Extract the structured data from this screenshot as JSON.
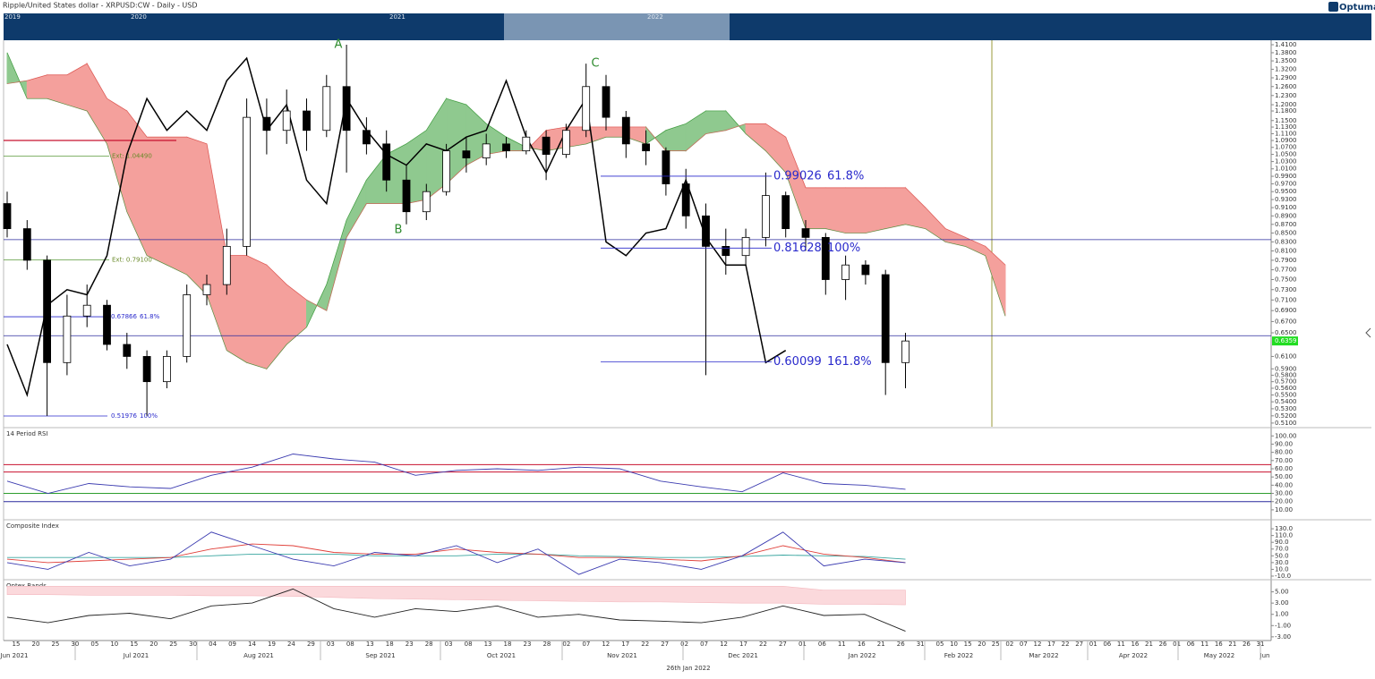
{
  "header": {
    "title": "Ripple/United States dollar - XRPUSD:CW - Daily - USD",
    "logo": "Optuma"
  },
  "overview": {
    "years": [
      "2019",
      "2020",
      "2021",
      "2022"
    ]
  },
  "footer": {
    "date": "26th Jan 2022"
  },
  "x_tick_labels": [
    "15",
    "20",
    "25",
    "30",
    "05",
    "10",
    "15",
    "20",
    "25",
    "30",
    "04",
    "09",
    "14",
    "19",
    "24",
    "29",
    "03",
    "08",
    "13",
    "18",
    "23",
    "28",
    "03",
    "08",
    "13",
    "18",
    "23",
    "28",
    "02",
    "07",
    "12",
    "17",
    "22",
    "27",
    "02",
    "07",
    "12",
    "17",
    "22",
    "27",
    "01",
    "06",
    "11",
    "16",
    "21",
    "26",
    "31",
    "05",
    "10",
    "15",
    "20",
    "25",
    "02",
    "07",
    "12",
    "17",
    "22",
    "27",
    "01",
    "06",
    "11",
    "16",
    "21",
    "26",
    "01",
    "06",
    "11",
    "16",
    "21",
    "26",
    "31"
  ],
  "x_month_labels": [
    "Jun 2021",
    "Jul 2021",
    "Aug 2021",
    "Sep 2021",
    "Oct 2021",
    "Nov 2021",
    "Dec 2021",
    "Jan 2022",
    "Feb 2022",
    "Mar 2022",
    "Apr 2022",
    "May 2022",
    "Jun"
  ],
  "chart_data": [
    {
      "type": "candlestick",
      "log_scale": true,
      "ylim": [
        0.505,
        1.427
      ],
      "up_color": "#ffffff",
      "down_color": "#000000",
      "wick_color": "#000000",
      "open": [
        0.92,
        0.86,
        0.79,
        0.6,
        0.68,
        0.7,
        0.63,
        0.61,
        0.57,
        0.61,
        0.72,
        0.74,
        0.82,
        1.16,
        1.12,
        1.18,
        1.12,
        1.26,
        1.12,
        1.08,
        0.98,
        0.9,
        0.95,
        1.06,
        1.04,
        1.08,
        1.06,
        1.1,
        1.05,
        1.12,
        1.26,
        1.16,
        1.08,
        1.06,
        0.97,
        0.89,
        0.82,
        0.8,
        0.84,
        0.94,
        0.86,
        0.84,
        0.75,
        0.78,
        0.76,
        0.6
      ],
      "high": [
        0.95,
        0.88,
        0.8,
        0.72,
        0.74,
        0.71,
        0.65,
        0.62,
        0.62,
        0.74,
        0.76,
        0.86,
        1.22,
        1.22,
        1.25,
        1.22,
        1.3,
        1.41,
        1.16,
        1.12,
        1.02,
        0.97,
        1.08,
        1.1,
        1.11,
        1.1,
        1.12,
        1.12,
        1.14,
        1.34,
        1.3,
        1.18,
        1.12,
        1.07,
        1.01,
        0.92,
        0.86,
        0.86,
        1.0,
        0.95,
        0.88,
        0.85,
        0.8,
        0.79,
        0.77,
        0.65
      ],
      "low": [
        0.84,
        0.77,
        0.52,
        0.58,
        0.66,
        0.62,
        0.59,
        0.52,
        0.56,
        0.6,
        0.7,
        0.72,
        0.8,
        1.05,
        1.08,
        1.06,
        1.1,
        1.0,
        1.05,
        0.95,
        0.87,
        0.88,
        0.94,
        1.0,
        1.02,
        1.04,
        1.05,
        0.98,
        1.04,
        1.1,
        1.12,
        1.04,
        1.02,
        0.94,
        0.86,
        0.58,
        0.76,
        0.78,
        0.82,
        0.84,
        0.81,
        0.72,
        0.71,
        0.74,
        0.55,
        0.56
      ],
      "close": [
        0.86,
        0.79,
        0.6,
        0.68,
        0.7,
        0.63,
        0.61,
        0.57,
        0.61,
        0.72,
        0.74,
        0.82,
        1.16,
        1.12,
        1.18,
        1.12,
        1.26,
        1.12,
        1.08,
        0.98,
        0.9,
        0.95,
        1.06,
        1.04,
        1.08,
        1.06,
        1.1,
        1.05,
        1.12,
        1.26,
        1.16,
        1.08,
        1.06,
        0.97,
        0.89,
        0.82,
        0.8,
        0.84,
        0.94,
        0.86,
        0.84,
        0.75,
        0.78,
        0.76,
        0.6,
        0.6359
      ],
      "cloud": {
        "bull_color": "#8fc98f",
        "bear_color": "#f4a09c",
        "span_a": [
          1.38,
          1.22,
          1.22,
          1.2,
          1.18,
          1.08,
          0.9,
          0.8,
          0.78,
          0.76,
          0.72,
          0.62,
          0.6,
          0.59,
          0.63,
          0.66,
          0.74,
          0.88,
          0.98,
          1.05,
          1.08,
          1.12,
          1.22,
          1.2,
          1.14,
          1.1,
          1.07,
          1.06,
          1.07,
          1.08,
          1.1,
          1.1,
          1.08,
          1.12,
          1.14,
          1.18,
          1.18,
          1.11,
          1.06,
          1.0,
          0.86,
          0.86,
          0.85,
          0.85,
          0.86,
          0.87,
          0.86,
          0.83,
          0.82,
          0.8,
          0.68
        ],
        "span_b": [
          1.27,
          1.28,
          1.3,
          1.3,
          1.34,
          1.22,
          1.18,
          1.1,
          1.1,
          1.1,
          1.08,
          0.8,
          0.8,
          0.78,
          0.74,
          0.71,
          0.69,
          0.84,
          0.92,
          0.92,
          0.92,
          0.93,
          0.97,
          1.02,
          1.05,
          1.06,
          1.06,
          1.12,
          1.13,
          1.13,
          1.13,
          1.13,
          1.13,
          1.06,
          1.06,
          1.11,
          1.12,
          1.14,
          1.14,
          1.1,
          0.96,
          0.96,
          0.96,
          0.96,
          0.96,
          0.96,
          0.91,
          0.86,
          0.84,
          0.82,
          0.78
        ]
      },
      "lagging_span": {
        "color": "#000000",
        "values": [
          0.63,
          0.55,
          0.7,
          0.73,
          0.72,
          0.8,
          1.05,
          1.22,
          1.12,
          1.18,
          1.12,
          1.28,
          1.36,
          1.12,
          1.2,
          0.98,
          0.92,
          1.22,
          1.12,
          1.05,
          1.02,
          1.08,
          1.06,
          1.1,
          1.12,
          1.28,
          1.1,
          1.0,
          1.12,
          1.22,
          0.83,
          0.8,
          0.85,
          0.86,
          0.98,
          0.84,
          0.78,
          0.78,
          0.6,
          0.62
        ]
      },
      "h_lines": [
        {
          "value": 0.835,
          "color": "#2a2a9e"
        },
        {
          "value": 0.645,
          "color": "#2a2a9e"
        }
      ],
      "red_line": {
        "value": 1.09,
        "color": "#c8102e"
      },
      "fib_levels": [
        {
          "value": 0.99026,
          "ratio": "61.8%"
        },
        {
          "value": 0.81628,
          "ratio": "100%"
        },
        {
          "value": 0.60099,
          "ratio": "161.8%"
        }
      ],
      "small_fib_levels": [
        {
          "value": 0.67866,
          "ratio": "61.8%"
        },
        {
          "value": 0.51976,
          "ratio": "100%"
        }
      ],
      "extensions": [
        {
          "value": 1.0449,
          "label": "Ext: 1.04490"
        },
        {
          "value": 0.791,
          "label": "Ext: 0.79100"
        }
      ],
      "wave_labels": [
        "A",
        "B",
        "C"
      ],
      "yticks": [
        {
          "value": 1.41,
          "label": "1.4100"
        },
        {
          "value": 1.38,
          "label": "1.3800"
        },
        {
          "value": 1.35,
          "label": "1.3500"
        },
        {
          "value": 1.32,
          "label": "1.3200"
        },
        {
          "value": 1.29,
          "label": "1.2900"
        },
        {
          "value": 1.26,
          "label": "1.2600"
        },
        {
          "value": 1.23,
          "label": "1.2300"
        },
        {
          "value": 1.2,
          "label": "1.2000"
        },
        {
          "value": 1.18,
          "label": "1.1800"
        },
        {
          "value": 1.15,
          "label": "1.1500"
        },
        {
          "value": 1.13,
          "label": "1.1300"
        },
        {
          "value": 1.11,
          "label": "1.1100"
        },
        {
          "value": 1.09,
          "label": "1.0900"
        },
        {
          "value": 1.07,
          "label": "1.0700"
        },
        {
          "value": 1.05,
          "label": "1.0500"
        },
        {
          "value": 1.03,
          "label": "1.0300"
        },
        {
          "value": 1.01,
          "label": "1.0100"
        },
        {
          "value": 0.99,
          "label": "0.9900"
        },
        {
          "value": 0.97,
          "label": "0.9700"
        },
        {
          "value": 0.95,
          "label": "0.9500"
        },
        {
          "value": 0.93,
          "label": "0.9300"
        },
        {
          "value": 0.91,
          "label": "0.9100"
        },
        {
          "value": 0.89,
          "label": "0.8900"
        },
        {
          "value": 0.87,
          "label": "0.8700"
        },
        {
          "value": 0.85,
          "label": "0.8500"
        },
        {
          "value": 0.83,
          "label": "0.8300"
        },
        {
          "value": 0.81,
          "label": "0.8100"
        },
        {
          "value": 0.79,
          "label": "0.7900"
        },
        {
          "value": 0.77,
          "label": "0.7700"
        },
        {
          "value": 0.75,
          "label": "0.7500"
        },
        {
          "value": 0.73,
          "label": "0.7300"
        },
        {
          "value": 0.71,
          "label": "0.7100"
        },
        {
          "value": 0.69,
          "label": "0.6900"
        },
        {
          "value": 0.67,
          "label": "0.6700"
        },
        {
          "value": 0.65,
          "label": "0.6500"
        },
        {
          "value": 0.61,
          "label": "0.6100"
        },
        {
          "value": 0.59,
          "label": "0.5900"
        },
        {
          "value": 0.58,
          "label": "0.5800"
        },
        {
          "value": 0.57,
          "label": "0.5700"
        },
        {
          "value": 0.56,
          "label": "0.5600"
        },
        {
          "value": 0.55,
          "label": "0.5500"
        },
        {
          "value": 0.54,
          "label": "0.5400"
        },
        {
          "value": 0.53,
          "label": "0.5300"
        },
        {
          "value": 0.52,
          "label": "0.5200"
        },
        {
          "value": 0.51,
          "label": "0.5100"
        }
      ]
    },
    {
      "type": "line",
      "title": "14 Period RSI",
      "ylim": [
        -1,
        109
      ],
      "yticks": [
        {
          "value": 100,
          "label": "100.00"
        },
        {
          "value": 90,
          "label": "90.00"
        },
        {
          "value": 80,
          "label": "80.00"
        },
        {
          "value": 70,
          "label": "70.00"
        },
        {
          "value": 60,
          "label": "60.00"
        },
        {
          "value": 50,
          "label": "50.00"
        },
        {
          "value": 40,
          "label": "40.00"
        },
        {
          "value": 30,
          "label": "30.00"
        },
        {
          "value": 20,
          "label": "20.00"
        },
        {
          "value": 10,
          "label": "10.00"
        }
      ],
      "h_lines": [
        {
          "value": 65,
          "color": "#c8102e"
        },
        {
          "value": 56,
          "color": "#c8102e"
        },
        {
          "value": 30,
          "color": "#2e9e2e"
        },
        {
          "value": 20,
          "color": "#2a2a9e"
        }
      ],
      "series": [
        {
          "color": "#3b3bb0",
          "values": [
            45,
            30,
            42,
            38,
            36,
            52,
            62,
            78,
            72,
            68,
            52,
            58,
            60,
            58,
            62,
            60,
            45,
            38,
            32,
            55,
            42,
            40,
            35
          ]
        }
      ]
    },
    {
      "type": "line",
      "title": "Composite Index",
      "ylim": [
        -18,
        154
      ],
      "yticks": [
        {
          "value": 130,
          "label": "130.0"
        },
        {
          "value": 110,
          "label": "110.0"
        },
        {
          "value": 90,
          "label": "90.0"
        },
        {
          "value": 70,
          "label": "70.0"
        },
        {
          "value": 50,
          "label": "50.0"
        },
        {
          "value": 30,
          "label": "30.0"
        },
        {
          "value": 10,
          "label": "10.0"
        },
        {
          "value": -10,
          "label": "-10.0"
        }
      ],
      "series": [
        {
          "color": "#3aa6a0",
          "values": [
            45,
            45,
            45,
            45,
            45,
            50,
            55,
            55,
            55,
            50,
            50,
            50,
            55,
            55,
            50,
            48,
            45,
            45,
            48,
            52,
            50,
            48,
            40
          ]
        },
        {
          "color": "#e0403a",
          "values": [
            40,
            30,
            35,
            40,
            45,
            70,
            85,
            80,
            60,
            55,
            55,
            70,
            60,
            55,
            45,
            45,
            40,
            35,
            50,
            80,
            55,
            45,
            30
          ]
        },
        {
          "color": "#3b3bb0",
          "values": [
            30,
            10,
            60,
            20,
            40,
            120,
            80,
            40,
            20,
            60,
            50,
            80,
            30,
            70,
            -5,
            40,
            30,
            10,
            50,
            120,
            20,
            40,
            30
          ]
        }
      ]
    },
    {
      "type": "line",
      "title": "Optex Bands",
      "ylim": [
        -3.5,
        7
      ],
      "yticks": [
        {
          "value": 5,
          "label": "5.00"
        },
        {
          "value": 3,
          "label": "3.00"
        },
        {
          "value": 1,
          "label": "1.00"
        },
        {
          "value": -1,
          "label": "-1.00"
        },
        {
          "value": -3,
          "label": "-3.00"
        }
      ],
      "bands": {
        "color": "#fbd9dc",
        "upper": [
          6,
          6,
          6,
          6,
          6,
          6,
          6,
          6,
          6,
          6,
          6,
          6,
          6,
          6,
          6,
          6,
          6,
          6,
          6,
          6,
          5.3,
          5.3,
          5.3
        ],
        "lower": [
          4.5,
          4.5,
          4.4,
          4.4,
          4.4,
          4.3,
          4.3,
          4.2,
          4,
          3.8,
          3.7,
          3.6,
          3.5,
          3.4,
          3.3,
          3.2,
          3.2,
          3.1,
          3,
          3,
          2.8,
          2.8,
          2.7
        ]
      },
      "series": [
        {
          "color": "#222222",
          "values": [
            0.5,
            -0.5,
            0.8,
            1.2,
            0.2,
            2.5,
            3,
            5.5,
            2,
            0.5,
            2,
            1.5,
            2.5,
            0.5,
            1,
            0,
            -0.2,
            -0.5,
            0.5,
            2.5,
            0.8,
            1,
            -2
          ]
        }
      ]
    }
  ]
}
